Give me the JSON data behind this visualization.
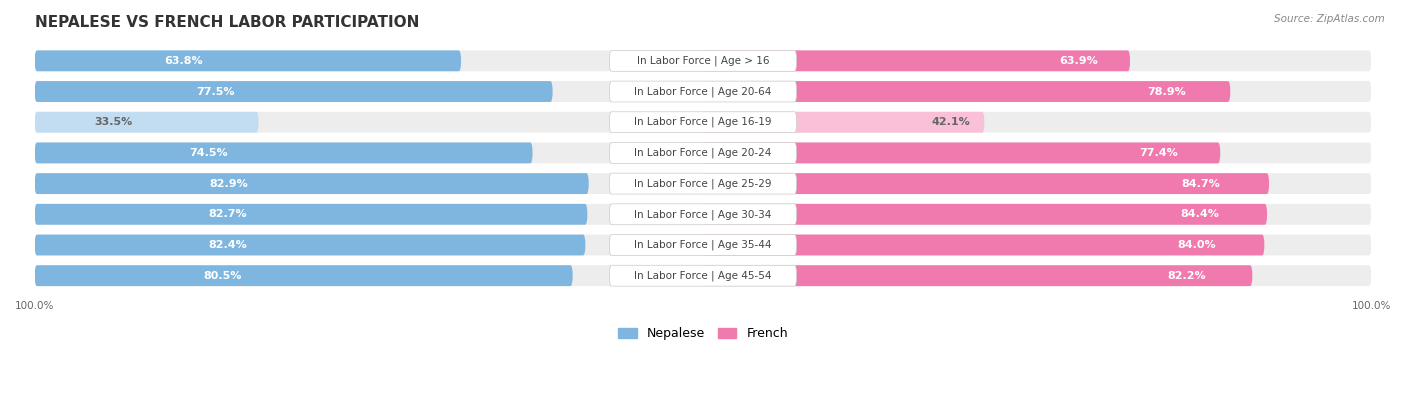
{
  "title": "NEPALESE VS FRENCH LABOR PARTICIPATION",
  "source": "Source: ZipAtlas.com",
  "categories": [
    "In Labor Force | Age > 16",
    "In Labor Force | Age 20-64",
    "In Labor Force | Age 16-19",
    "In Labor Force | Age 20-24",
    "In Labor Force | Age 25-29",
    "In Labor Force | Age 30-34",
    "In Labor Force | Age 35-44",
    "In Labor Force | Age 45-54"
  ],
  "nepalese_values": [
    63.8,
    77.5,
    33.5,
    74.5,
    82.9,
    82.7,
    82.4,
    80.5
  ],
  "french_values": [
    63.9,
    78.9,
    42.1,
    77.4,
    84.7,
    84.4,
    84.0,
    82.2
  ],
  "nepalese_color": "#7EB6E0",
  "french_color": "#F07AAE",
  "nepalese_color_light": "#C2DDF2",
  "french_color_light": "#F9C0D8",
  "row_bg": "#EDEDEE",
  "bar_value_fontsize": 8.0,
  "title_fontsize": 11,
  "source_fontsize": 7.5,
  "label_fontsize": 7.5,
  "axis_tick_fontsize": 7.5,
  "legend_nepalese": "Nepalese",
  "legend_french": "French",
  "x_axis_label_left": "100.0%",
  "x_axis_label_right": "100.0%"
}
